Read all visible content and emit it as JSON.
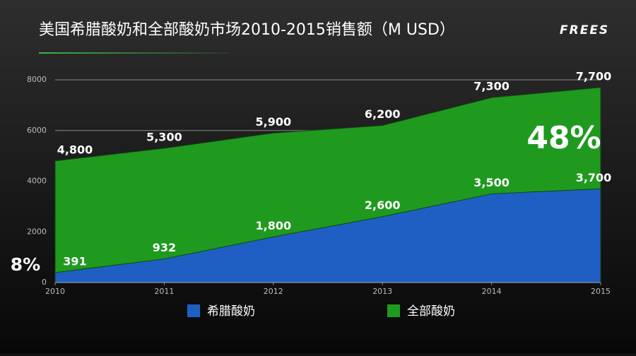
{
  "chart_data": {
    "type": "area",
    "title": "美国希腊酸奶和全部酸奶市场2010-2015销售额（M USD）",
    "brand": "FREES",
    "x": [
      2010,
      2011,
      2012,
      2013,
      2014,
      2015
    ],
    "xlim": [
      2010,
      2015
    ],
    "xticks": [
      2010,
      2011,
      2012,
      2013,
      2014,
      2015
    ],
    "ylim": [
      0,
      8000
    ],
    "yticks": [
      0,
      2000,
      4000,
      6000,
      8000
    ],
    "grid": true,
    "series": [
      {
        "name": "希腊酸奶",
        "color": "#1f5fc4",
        "values": [
          391,
          932,
          1800,
          2600,
          3500,
          3700
        ],
        "value_labels": [
          "391",
          "932",
          "1,800",
          "2,600",
          "3,500",
          "3,700"
        ]
      },
      {
        "name": "全部酸奶",
        "color": "#1f9a1f",
        "values": [
          4800,
          5300,
          5900,
          6200,
          7300,
          7700
        ],
        "value_labels": [
          "4,800",
          "5,300",
          "5,900",
          "6,200",
          "7,300",
          "7,700"
        ]
      }
    ],
    "annotations": [
      {
        "text": "8%"
      },
      {
        "text": "48%"
      }
    ]
  }
}
